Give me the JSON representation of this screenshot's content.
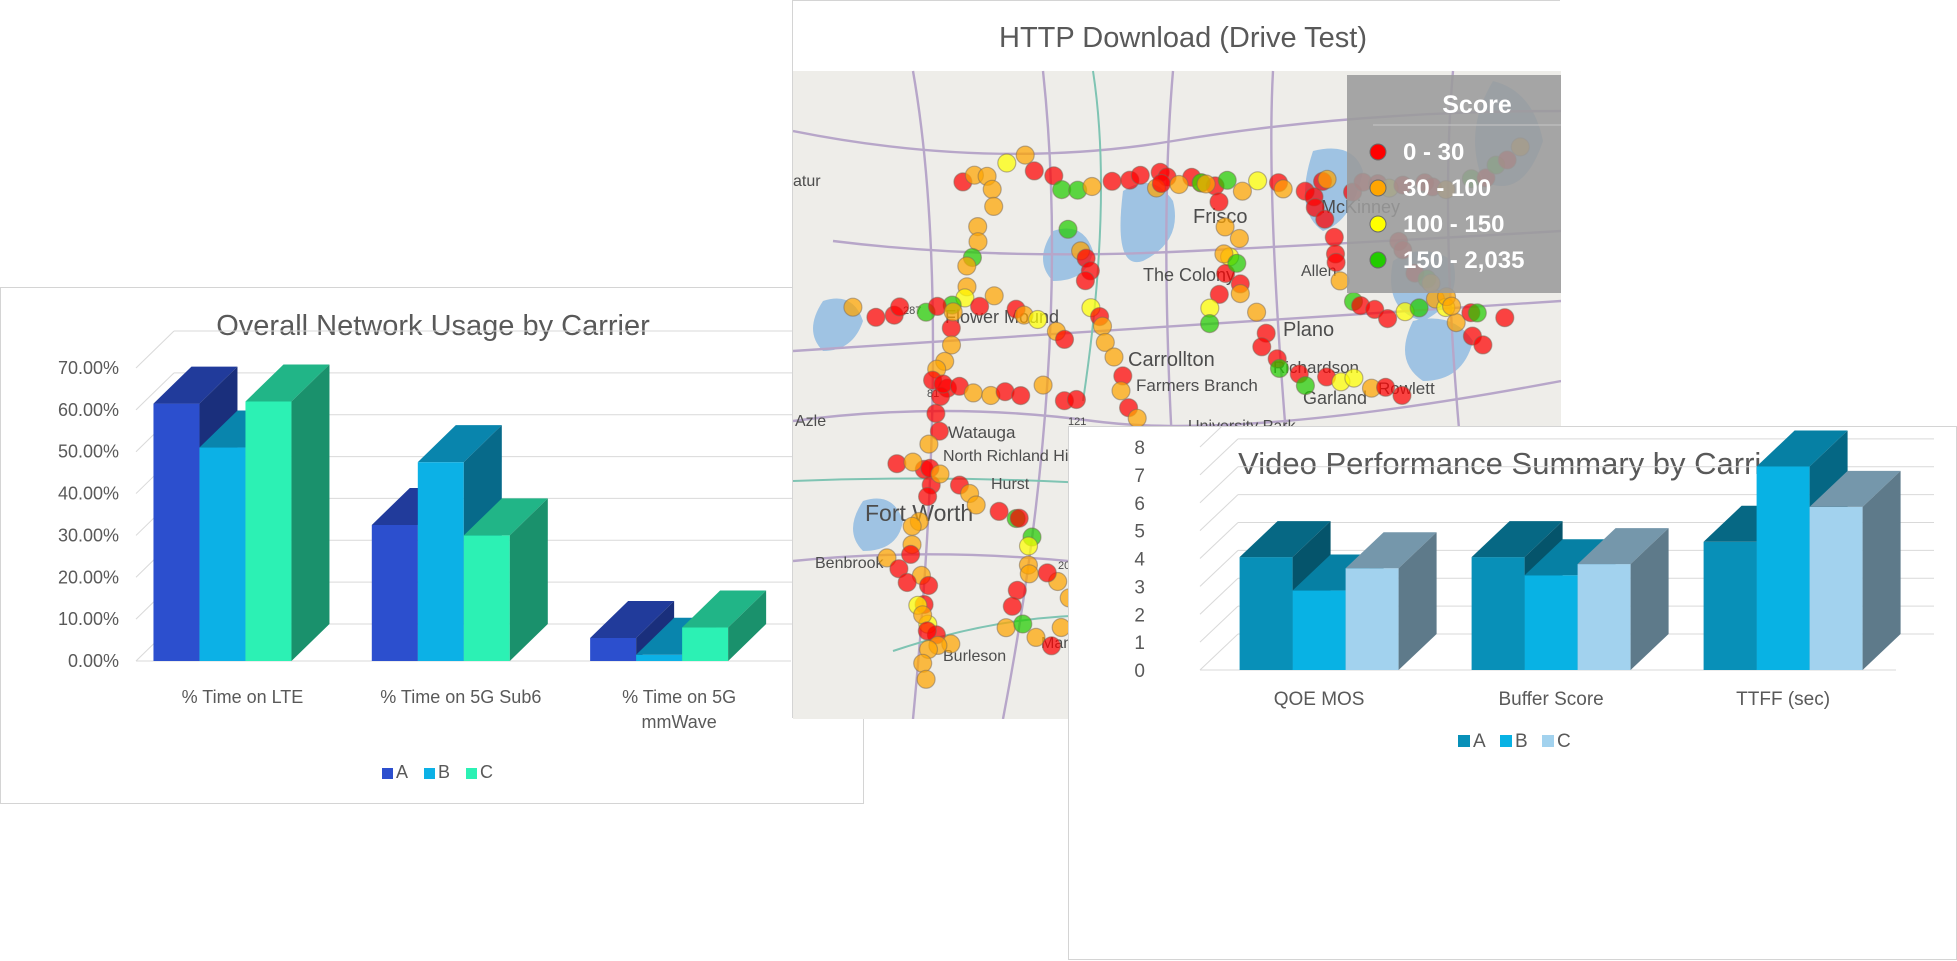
{
  "chart_data": [
    {
      "type": "bar",
      "title": "Overall Network Usage by Carrier",
      "categories": [
        "% Time on LTE",
        "% Time on 5G Sub6",
        "% Time on 5G mmWave"
      ],
      "series": [
        {
          "name": "A",
          "values": [
            0.615,
            0.325,
            0.055
          ],
          "color": "#2c4fce"
        },
        {
          "name": "B",
          "values": [
            0.51,
            0.475,
            0.015
          ],
          "color": "#0cb1e6"
        },
        {
          "name": "C",
          "values": [
            0.62,
            0.3,
            0.08
          ],
          "color": "#2cf1b4"
        }
      ],
      "y_ticks": [
        "0.00%",
        "10.00%",
        "20.00%",
        "30.00%",
        "40.00%",
        "50.00%",
        "60.00%",
        "70.00%"
      ],
      "ylim": [
        0,
        0.7
      ],
      "legend": "bottom",
      "grid": true
    },
    {
      "type": "scatter",
      "title": "HTTP Download (Drive Test)",
      "legend_title": "Score",
      "legend": "top-right",
      "bins": [
        {
          "label": "0 - 30",
          "color": "#ff0000"
        },
        {
          "label": "30 - 100",
          "color": "#ffa500"
        },
        {
          "label": "100 - 150",
          "color": "#ffff00"
        },
        {
          "label": "150 - 2,035",
          "color": "#22cc00"
        }
      ],
      "map_labels": [
        "atur",
        "Frisco",
        "The Colony",
        "McKinney",
        "Allen",
        "Flower Mound",
        "Plano",
        "Carrollton",
        "Richardson",
        "Farmers Branch",
        "Garland",
        "Rowlett",
        "Azle",
        "University Park",
        "Watauga",
        "North Richland Hills",
        "Hurst",
        "Fort Worth",
        "Benbrook",
        "Burleson",
        "Mansfield",
        "287",
        "81",
        "121",
        "20"
      ]
    },
    {
      "type": "bar",
      "title": "Video Performance Summary by Carrier",
      "categories": [
        "QOE MOS",
        "Buffer Score",
        "TTFF (sec)"
      ],
      "series": [
        {
          "name": "A",
          "values": [
            4.05,
            4.05,
            4.6
          ],
          "color": "#0890b8"
        },
        {
          "name": "B",
          "values": [
            2.85,
            3.4,
            7.3
          ],
          "color": "#08b2e4"
        },
        {
          "name": "C",
          "values": [
            3.65,
            3.8,
            5.85
          ],
          "color": "#a2d2ee"
        }
      ],
      "y_ticks": [
        "0",
        "1",
        "2",
        "3",
        "4",
        "5",
        "6",
        "7",
        "8"
      ],
      "ylim": [
        0,
        8
      ],
      "legend": "bottom",
      "grid": true
    }
  ]
}
